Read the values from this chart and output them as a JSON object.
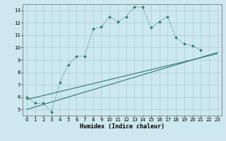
{
  "xlabel": "Humidex (Indice chaleur)",
  "background_color": "#cde8ee",
  "line_color": "#2e7d6e",
  "grid_color": "#aacdd6",
  "xlim": [
    -0.5,
    23.5
  ],
  "ylim": [
    4.5,
    13.5
  ],
  "xticks": [
    0,
    1,
    2,
    3,
    4,
    5,
    6,
    7,
    8,
    9,
    10,
    11,
    12,
    13,
    14,
    15,
    16,
    17,
    18,
    19,
    20,
    21,
    22,
    23
  ],
  "yticks": [
    5,
    6,
    7,
    8,
    9,
    10,
    11,
    12,
    13
  ],
  "line1_x": [
    0,
    1,
    2,
    3,
    4,
    5,
    6,
    7,
    8,
    9,
    10,
    11,
    12,
    13,
    14,
    15,
    16,
    17,
    18,
    19,
    20,
    21
  ],
  "line1_y": [
    6.0,
    5.5,
    5.5,
    4.8,
    7.2,
    8.6,
    9.3,
    9.3,
    11.5,
    11.65,
    12.5,
    12.1,
    12.5,
    13.3,
    13.25,
    11.6,
    12.1,
    12.5,
    10.8,
    10.3,
    10.15,
    9.8
  ],
  "line2_x": [
    0,
    23
  ],
  "line2_y": [
    5.8,
    9.5
  ],
  "line3_x": [
    0,
    23
  ],
  "line3_y": [
    5.0,
    9.6
  ]
}
